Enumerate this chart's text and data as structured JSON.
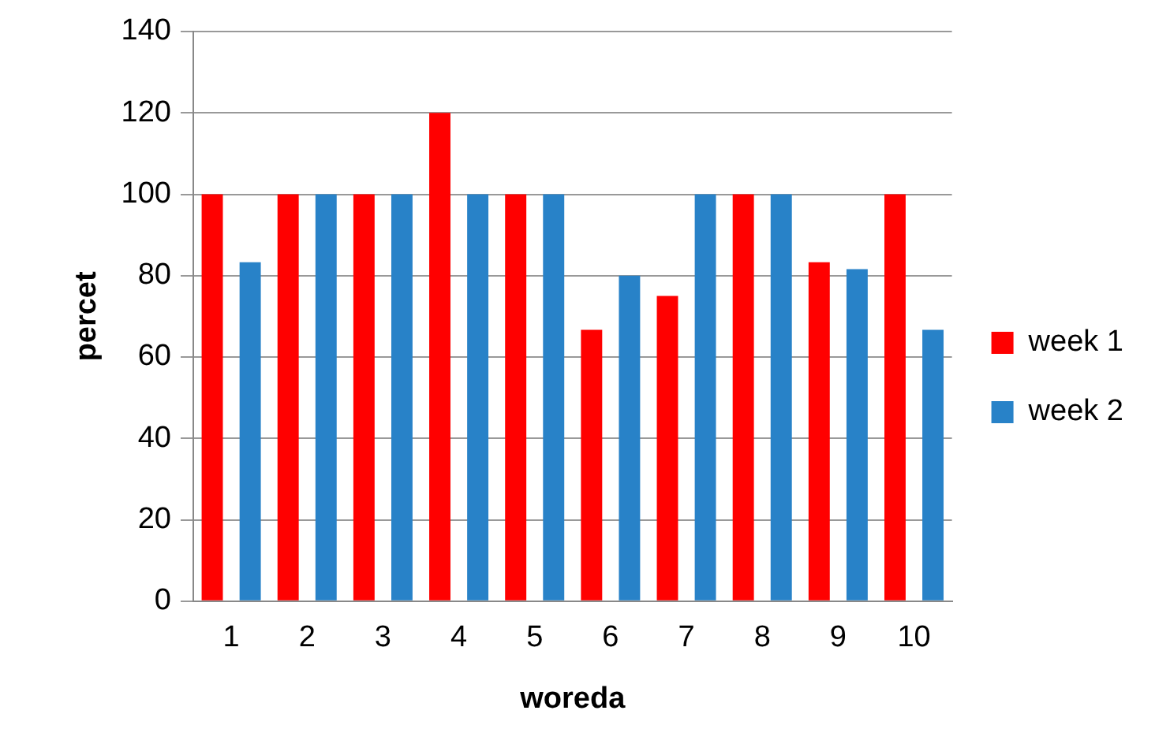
{
  "chart_data": {
    "type": "bar",
    "xlabel": "woreda",
    "ylabel": "percet",
    "categories": [
      "1",
      "2",
      "3",
      "4",
      "5",
      "6",
      "7",
      "8",
      "9",
      "10"
    ],
    "series": [
      {
        "name": "week 1",
        "color": "#ff0000",
        "values": [
          100,
          100,
          100,
          120,
          100,
          66.7,
          75,
          100,
          83.3,
          100
        ]
      },
      {
        "name": "week 2",
        "color": "#2882c8",
        "values": [
          83.3,
          100,
          100,
          100,
          100,
          80,
          100,
          100,
          81.6,
          66.7
        ]
      }
    ],
    "ylim": [
      0,
      140
    ],
    "yticks": [
      0,
      20,
      40,
      60,
      80,
      100,
      120,
      140
    ],
    "grid": "y",
    "legend": "right"
  }
}
